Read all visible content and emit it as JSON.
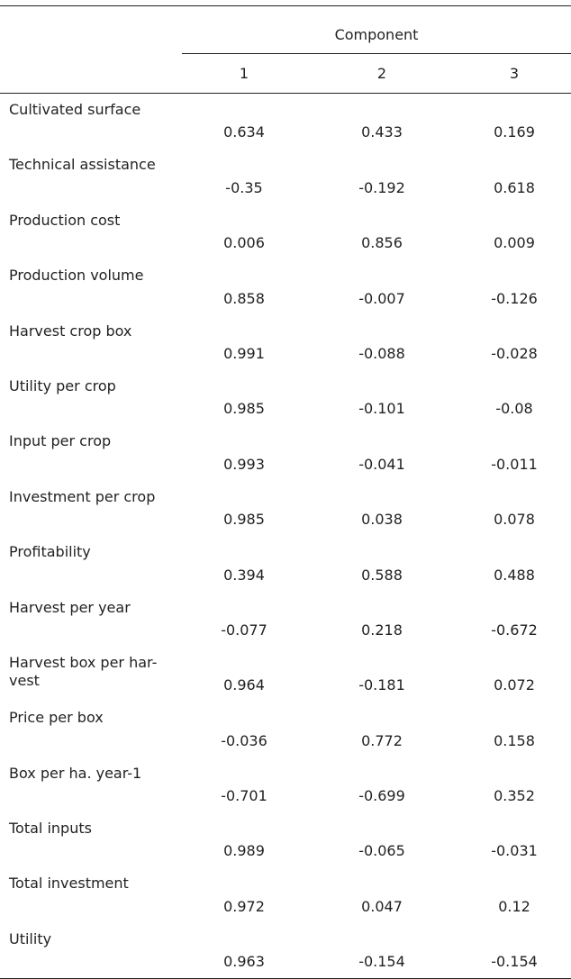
{
  "table": {
    "header": "Component",
    "columns": [
      "1",
      "2",
      "3"
    ],
    "rows": [
      {
        "label": "Cultivated surface",
        "values": [
          0.634,
          0.433,
          0.169
        ]
      },
      {
        "label": "Technical assistance",
        "values": [
          -0.35,
          -0.192,
          0.618
        ]
      },
      {
        "label": "Production cost",
        "values": [
          0.006,
          0.856,
          0.009
        ]
      },
      {
        "label": "Production volume",
        "values": [
          0.858,
          -0.007,
          -0.126
        ]
      },
      {
        "label": "Harvest crop box",
        "values": [
          0.991,
          -0.088,
          -0.028
        ]
      },
      {
        "label": "Utility per crop",
        "values": [
          0.985,
          -0.101,
          -0.08
        ]
      },
      {
        "label": "Input per crop",
        "values": [
          0.993,
          -0.041,
          -0.011
        ]
      },
      {
        "label": "Investment per crop",
        "values": [
          0.985,
          0.038,
          0.078
        ]
      },
      {
        "label": "Profitability",
        "values": [
          0.394,
          0.588,
          0.488
        ]
      },
      {
        "label": "Harvest per year",
        "values": [
          -0.077,
          0.218,
          -0.672
        ]
      },
      {
        "label": "Harvest box per har-\nvest",
        "values": [
          0.964,
          -0.181,
          0.072
        ]
      },
      {
        "label": "Price per box",
        "values": [
          -0.036,
          0.772,
          0.158
        ]
      },
      {
        "label": "Box per ha. year-1",
        "values": [
          -0.701,
          -0.699,
          0.352
        ]
      },
      {
        "label": "Total inputs",
        "values": [
          0.989,
          -0.065,
          -0.031
        ]
      },
      {
        "label": "Total investment",
        "values": [
          0.972,
          0.047,
          0.12
        ]
      },
      {
        "label": "Utility",
        "values": [
          0.963,
          -0.154,
          -0.154
        ]
      }
    ]
  }
}
